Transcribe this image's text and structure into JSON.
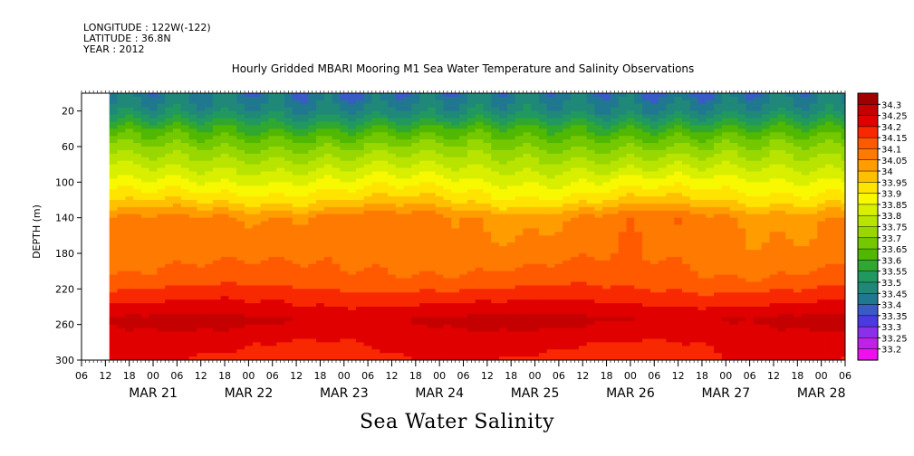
{
  "header": {
    "longitude": "LONGITUDE : 122W(-122)",
    "latitude": "LATITUDE : 36.8N",
    "year": "YEAR : 2012"
  },
  "chart_data": {
    "type": "heatmap",
    "title": "Hourly Gridded MBARI Mooring M1 Sea Water Temperature and Salinity Observations",
    "variable_title": "Sea Water Salinity",
    "ylabel": "DEPTH (m)",
    "ylim": [
      300,
      0
    ],
    "yticks": [
      20,
      60,
      100,
      140,
      180,
      220,
      260,
      300
    ],
    "xlim_hours": [
      "2012-03-20T06:00",
      "2012-03-28T06:00"
    ],
    "data_start": "2012-03-20T13:00",
    "hour_ticks": [
      "06",
      "12",
      "18",
      "00",
      "06",
      "12",
      "18",
      "00",
      "06",
      "12",
      "18",
      "00",
      "06",
      "12",
      "18",
      "00",
      "06",
      "12",
      "18",
      "00",
      "06",
      "12",
      "18",
      "00",
      "06",
      "12",
      "18",
      "00",
      "06",
      "12",
      "18",
      "00",
      "06"
    ],
    "date_labels": [
      {
        "label": "MAR 21",
        "date": "2012-03-21"
      },
      {
        "label": "MAR 22",
        "date": "2012-03-22"
      },
      {
        "label": "MAR 23",
        "date": "2012-03-23"
      },
      {
        "label": "MAR 24",
        "date": "2012-03-24"
      },
      {
        "label": "MAR 25",
        "date": "2012-03-25"
      },
      {
        "label": "MAR 26",
        "date": "2012-03-26"
      },
      {
        "label": "MAR 27",
        "date": "2012-03-27"
      },
      {
        "label": "MAR 28",
        "date": "2012-03-28"
      }
    ],
    "colorbar": {
      "levels": [
        "34.3",
        "34.25",
        "34.2",
        "34.15",
        "34.1",
        "34.05",
        "34",
        "33.95",
        "33.9",
        "33.85",
        "33.8",
        "33.75",
        "33.7",
        "33.65",
        "33.6",
        "33.55",
        "33.5",
        "33.45",
        "33.4",
        "33.35",
        "33.3",
        "33.25",
        "33.2"
      ],
      "colors": [
        "#a00000",
        "#c40000",
        "#e00000",
        "#f82800",
        "#ff5a00",
        "#ff7a00",
        "#ff9c00",
        "#ffc000",
        "#ffe400",
        "#f8f800",
        "#d8f000",
        "#b8e400",
        "#98d800",
        "#74c800",
        "#50b800",
        "#30a830",
        "#209860",
        "#208878",
        "#207890",
        "#3a5ac8",
        "#4a3ae0",
        "#8a30e8",
        "#c020e8",
        "#ee10ee"
      ]
    },
    "depth_profile": [
      {
        "depth": 0,
        "salinity": 33.42
      },
      {
        "depth": 20,
        "salinity": 33.47
      },
      {
        "depth": 40,
        "salinity": 33.6
      },
      {
        "depth": 60,
        "salinity": 33.7
      },
      {
        "depth": 80,
        "salinity": 33.78
      },
      {
        "depth": 100,
        "salinity": 33.86
      },
      {
        "depth": 120,
        "salinity": 33.94
      },
      {
        "depth": 140,
        "salinity": 34.06
      },
      {
        "depth": 180,
        "salinity": 34.08
      },
      {
        "depth": 210,
        "salinity": 34.12
      },
      {
        "depth": 230,
        "salinity": 34.18
      },
      {
        "depth": 255,
        "salinity": 34.26
      },
      {
        "depth": 280,
        "salinity": 34.21
      },
      {
        "depth": 300,
        "salinity": 34.19
      }
    ]
  }
}
